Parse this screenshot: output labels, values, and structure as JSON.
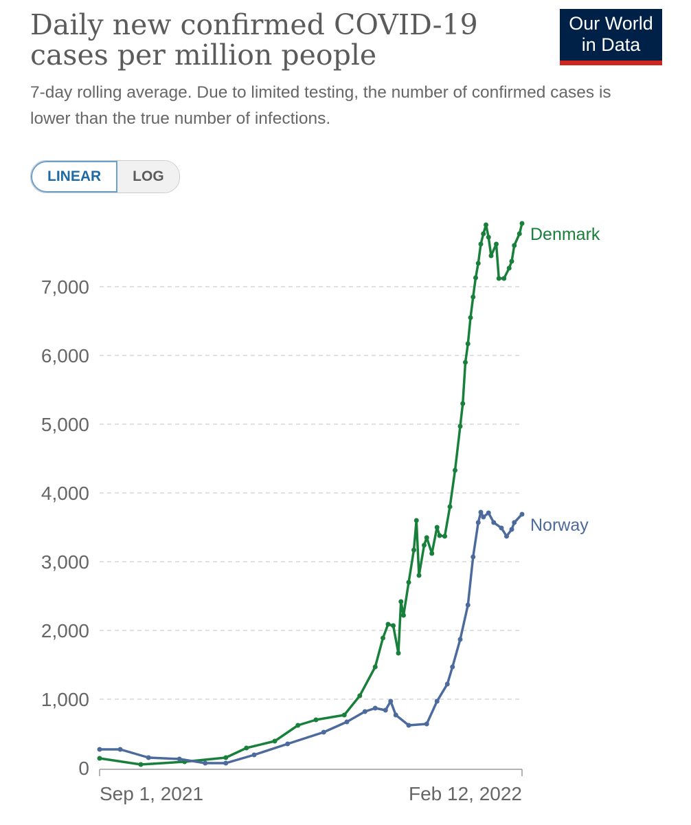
{
  "header": {
    "title": "Daily new confirmed COVID-19 cases per million people",
    "subtitle": "7-day rolling average. Due to limited testing, the number of confirmed cases is lower than the true number of infections.",
    "logo_line1": "Our World",
    "logo_line2": "in Data"
  },
  "toggle": {
    "linear": "LINEAR",
    "log": "LOG",
    "selected": "LINEAR"
  },
  "chart_data": {
    "type": "line",
    "title": "Daily new confirmed COVID-19 cases per million people",
    "xlabel": "",
    "ylabel": "",
    "x_unit": "days since Sep 1, 2021",
    "xlim": [
      0,
      164
    ],
    "ylim": [
      0,
      8000
    ],
    "y_ticks": [
      0,
      1000,
      2000,
      3000,
      4000,
      5000,
      6000,
      7000
    ],
    "y_tick_labels": [
      "0",
      "1,000",
      "2,000",
      "3,000",
      "4,000",
      "5,000",
      "6,000",
      "7,000"
    ],
    "x_tick_labels": [
      "Sep 1, 2021",
      "Feb 12, 2022"
    ],
    "grid": true,
    "series": [
      {
        "name": "Denmark",
        "color": "#18803b",
        "x": [
          0,
          16,
          33,
          49,
          57,
          68,
          77,
          84,
          95,
          101,
          107,
          110,
          112,
          114,
          116,
          117,
          118,
          120,
          122,
          123,
          124,
          126,
          127,
          129,
          131,
          132,
          134,
          136,
          138,
          140,
          141,
          142,
          143,
          144,
          145,
          146,
          147,
          148,
          149,
          150,
          151,
          152,
          154,
          155,
          157,
          159,
          160,
          161,
          163,
          164
        ],
        "y": [
          140,
          50,
          90,
          150,
          290,
          390,
          620,
          700,
          770,
          1050,
          1470,
          1890,
          2090,
          2070,
          1670,
          2420,
          2220,
          2700,
          3170,
          3600,
          2800,
          3240,
          3350,
          3120,
          3500,
          3380,
          3370,
          3800,
          4330,
          4970,
          5300,
          5900,
          6170,
          6550,
          6850,
          7130,
          7340,
          7620,
          7770,
          7900,
          7720,
          7450,
          7620,
          7120,
          7120,
          7270,
          7370,
          7600,
          7770,
          7920
        ]
      },
      {
        "name": "Norway",
        "color": "#4c6a9c",
        "x": [
          0,
          8,
          19,
          31,
          41,
          49,
          60,
          73,
          87,
          96,
          103,
          107,
          111,
          113,
          115,
          120,
          127,
          131,
          135,
          137,
          140,
          143,
          145,
          147,
          148,
          149,
          151,
          153,
          156,
          158,
          160,
          161,
          164
        ],
        "y": [
          270,
          270,
          150,
          130,
          70,
          70,
          190,
          350,
          520,
          670,
          820,
          870,
          840,
          970,
          770,
          620,
          640,
          970,
          1220,
          1470,
          1870,
          2370,
          3070,
          3570,
          3720,
          3650,
          3710,
          3570,
          3490,
          3370,
          3470,
          3570,
          3690
        ]
      }
    ]
  }
}
